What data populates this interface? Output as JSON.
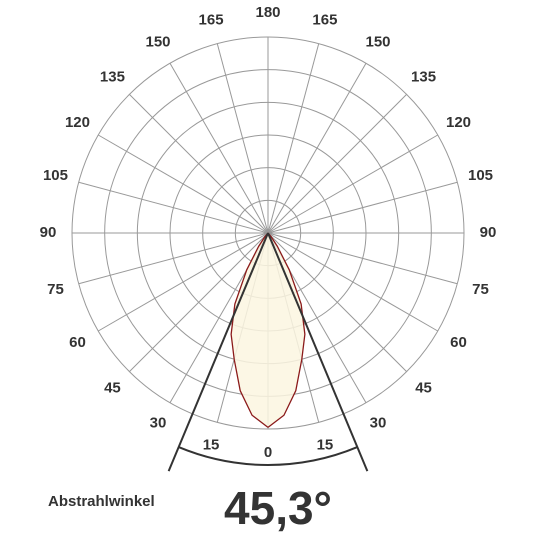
{
  "chart_data": {
    "type": "polar",
    "angle_ticks": [
      0,
      15,
      30,
      45,
      60,
      75,
      90,
      105,
      120,
      135,
      150,
      165,
      180
    ],
    "rlim": [
      0,
      6
    ],
    "rgrid": [
      1,
      2,
      3,
      4,
      5,
      6
    ],
    "angles": [
      0,
      5,
      10,
      15,
      20,
      25,
      30,
      35,
      40,
      45
    ],
    "values": [
      5.95,
      5.6,
      4.9,
      4.0,
      3.3,
      2.4,
      1.3,
      0.5,
      0.15,
      0
    ],
    "color": "#8b1a1a",
    "fill": "#fbf6e0",
    "beam_angle": {
      "value": 45.3,
      "label": "45,3°"
    },
    "beam_angle_title": "Abstrahlwinkel"
  }
}
